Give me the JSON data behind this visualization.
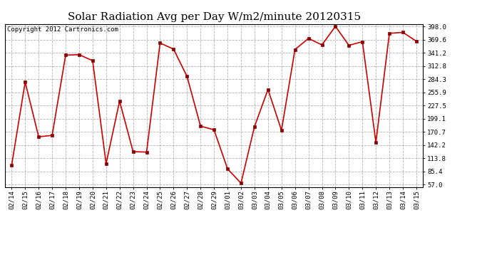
{
  "title": "Solar Radiation Avg per Day W/m2/minute 20120315",
  "copyright": "Copyright 2012 Cartronics.com",
  "labels": [
    "02/14",
    "02/15",
    "02/16",
    "02/17",
    "02/18",
    "02/19",
    "02/20",
    "02/21",
    "02/22",
    "02/23",
    "02/24",
    "02/25",
    "02/26",
    "02/27",
    "02/28",
    "02/29",
    "03/01",
    "03/02",
    "03/03",
    "03/04",
    "03/05",
    "03/06",
    "03/07",
    "03/08",
    "03/09",
    "03/10",
    "03/11",
    "03/12",
    "03/13",
    "03/14",
    "03/15"
  ],
  "values": [
    99,
    278,
    160,
    163,
    336,
    337,
    324,
    102,
    237,
    128,
    127,
    362,
    349,
    290,
    183,
    175,
    91,
    60,
    182,
    262,
    174,
    348,
    372,
    358,
    398,
    357,
    365,
    148,
    383,
    385,
    366
  ],
  "line_color": "#cc0000",
  "marker_color": "#880000",
  "bg_color": "#ffffff",
  "plot_bg_color": "#ffffff",
  "grid_color": "#aaaaaa",
  "yticks": [
    57.0,
    85.4,
    113.8,
    142.2,
    170.7,
    199.1,
    227.5,
    255.9,
    284.3,
    312.8,
    341.2,
    369.6,
    398.0
  ],
  "ylim": [
    57.0,
    398.0
  ],
  "title_fontsize": 11,
  "copyright_fontsize": 6.5,
  "tick_fontsize": 6.5
}
